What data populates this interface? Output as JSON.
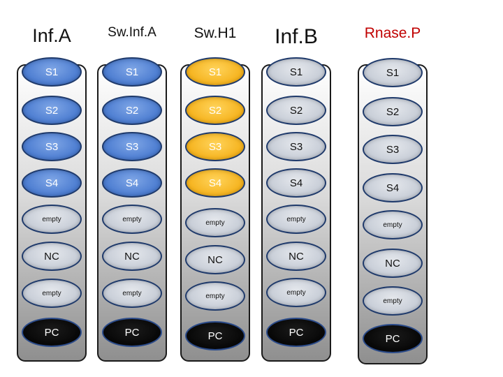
{
  "columns": [
    {
      "header": "Inf.A",
      "header_color": "#111111",
      "wells": [
        {
          "label": "S1",
          "style": "blue"
        },
        {
          "label": "S2",
          "style": "blue"
        },
        {
          "label": "S3",
          "style": "blue"
        },
        {
          "label": "S4",
          "style": "blue"
        },
        {
          "label": "empty",
          "style": "grey"
        },
        {
          "label": "NC",
          "style": "grey"
        },
        {
          "label": "empty",
          "style": "grey"
        },
        {
          "label": "PC",
          "style": "black"
        }
      ]
    },
    {
      "header": "Sw.Inf.A",
      "header_color": "#111111",
      "wells": [
        {
          "label": "S1",
          "style": "blue"
        },
        {
          "label": "S2",
          "style": "blue"
        },
        {
          "label": "S3",
          "style": "blue"
        },
        {
          "label": "S4",
          "style": "blue"
        },
        {
          "label": "empty",
          "style": "grey"
        },
        {
          "label": "NC",
          "style": "grey"
        },
        {
          "label": "empty",
          "style": "grey"
        },
        {
          "label": "PC",
          "style": "black"
        }
      ]
    },
    {
      "header": "Sw.H1",
      "header_color": "#111111",
      "wells": [
        {
          "label": "S1",
          "style": "yellow"
        },
        {
          "label": "S2",
          "style": "yellow"
        },
        {
          "label": "S3",
          "style": "yellow"
        },
        {
          "label": "S4",
          "style": "yellow"
        },
        {
          "label": "empty",
          "style": "grey"
        },
        {
          "label": "NC",
          "style": "grey"
        },
        {
          "label": "empty",
          "style": "grey"
        },
        {
          "label": "PC",
          "style": "black"
        }
      ]
    },
    {
      "header": "Inf.B",
      "header_color": "#111111",
      "wells": [
        {
          "label": "S1",
          "style": "grey"
        },
        {
          "label": "S2",
          "style": "grey"
        },
        {
          "label": "S3",
          "style": "grey"
        },
        {
          "label": "S4",
          "style": "grey"
        },
        {
          "label": "empty",
          "style": "grey"
        },
        {
          "label": "NC",
          "style": "grey"
        },
        {
          "label": "empty",
          "style": "grey"
        },
        {
          "label": "PC",
          "style": "black"
        }
      ]
    },
    {
      "header": "Rnase.P",
      "header_color": "#c00000",
      "wells": [
        {
          "label": "S1",
          "style": "grey"
        },
        {
          "label": "S2",
          "style": "grey"
        },
        {
          "label": "S3",
          "style": "grey"
        },
        {
          "label": "S4",
          "style": "grey"
        },
        {
          "label": "empty",
          "style": "grey"
        },
        {
          "label": "NC",
          "style": "grey"
        },
        {
          "label": "empty",
          "style": "grey"
        },
        {
          "label": "PC",
          "style": "black"
        }
      ]
    }
  ]
}
